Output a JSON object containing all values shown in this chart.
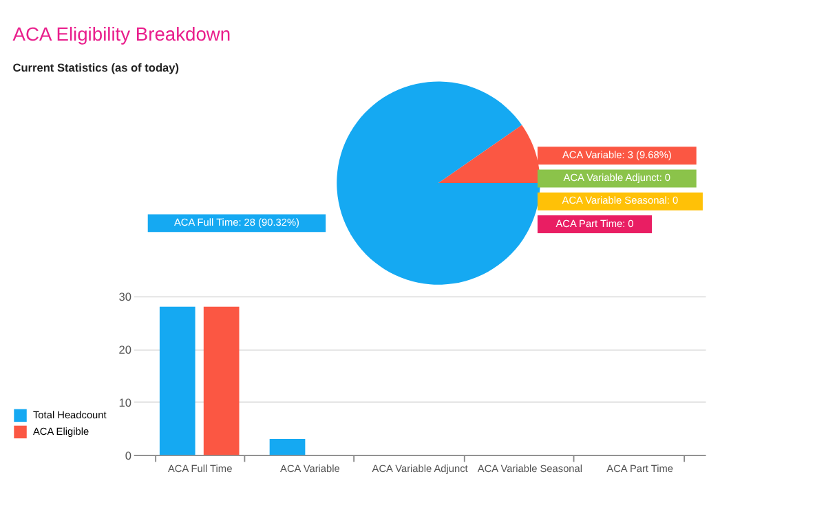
{
  "chart_data": [
    {
      "type": "pie",
      "title": "ACA Eligibility Breakdown",
      "subtitle": "Current Statistics (as of today)",
      "categories": [
        "ACA Full Time: 28 (90.32%)",
        "ACA Variable: 3 (9.68%)",
        "ACA Variable Adjunct: 0",
        "ACA Variable Seasonal: 0",
        "ACA Part Time: 0"
      ],
      "values": [
        28,
        3,
        0,
        0,
        0
      ],
      "colors": [
        "#15a9f2",
        "#fb5743",
        "#8bc34a",
        "#ffc107",
        "#e91e63"
      ]
    },
    {
      "type": "bar",
      "categories": [
        "ACA Full Time",
        "ACA Variable",
        "ACA Variable Adjunct",
        "ACA Variable Seasonal",
        "ACA Part Time"
      ],
      "series": [
        {
          "name": "Total Headcount",
          "color": "#15a9f2",
          "values": [
            28,
            3,
            0,
            0,
            0
          ]
        },
        {
          "name": "ACA Eligible",
          "color": "#fb5743",
          "values": [
            28,
            0,
            0,
            0,
            0
          ]
        }
      ],
      "ylim": [
        0,
        30
      ],
      "yticks": [
        0,
        10,
        20,
        30
      ],
      "grid": "y",
      "legend": "bottom left"
    }
  ]
}
